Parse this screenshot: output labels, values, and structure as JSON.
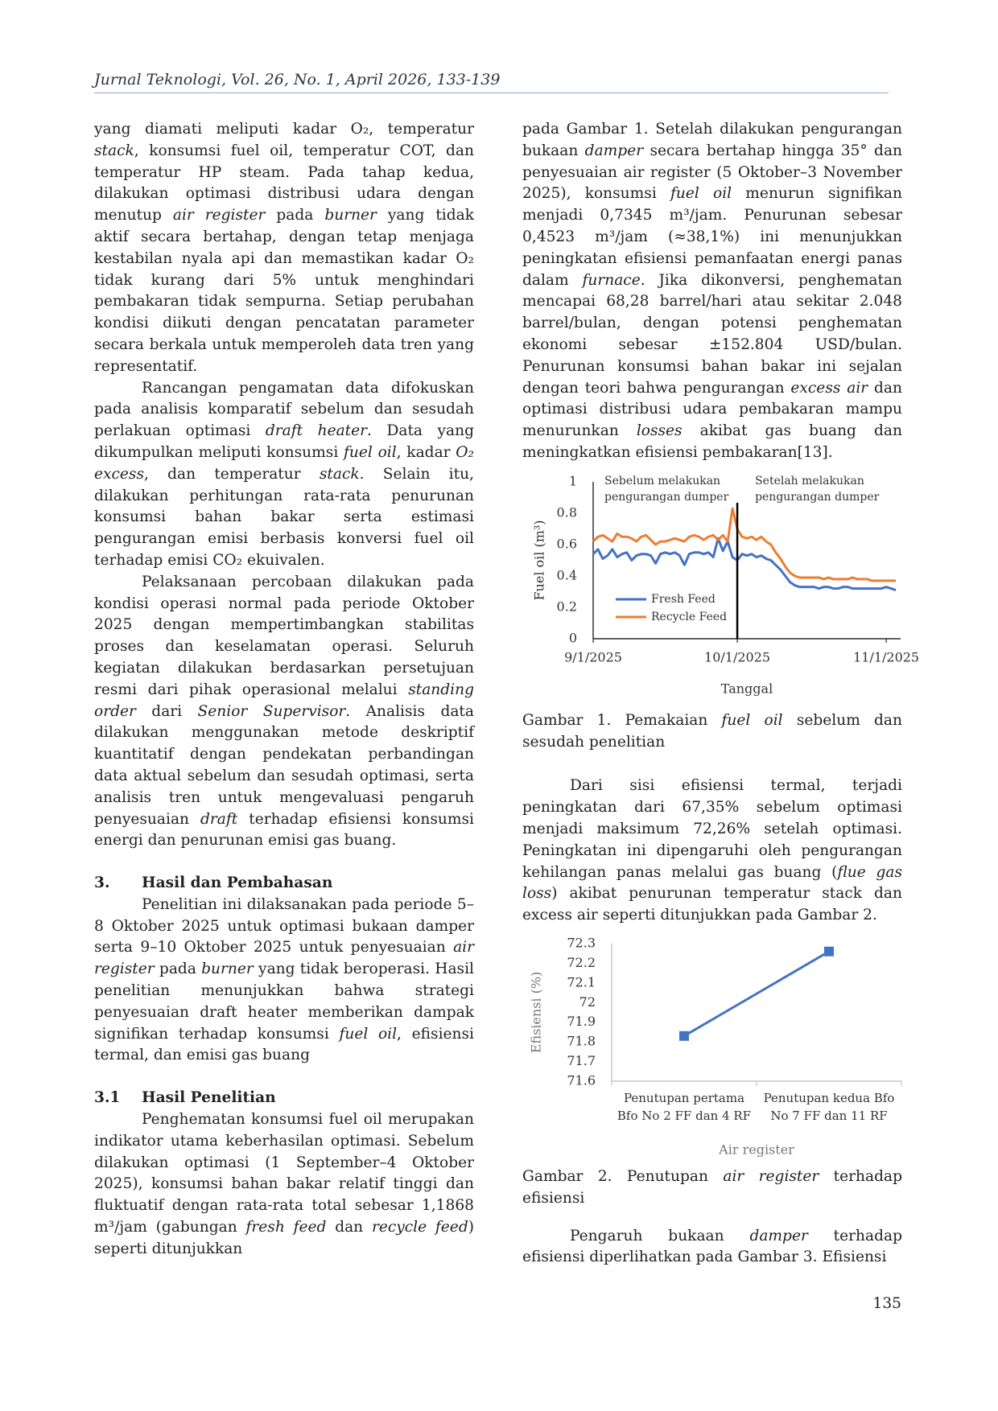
{
  "header": "Jurnal Teknologi, Vol. 26, No. 1, April 2026, 133-139",
  "page_number": "135",
  "left_column": [
    {
      "runs": [
        "yang diamati meliputi kadar O₂, temperatur ",
        "stack",
        ", konsumsi fuel oil, temperatur COT, dan temperatur HP steam. Pada tahap kedua, dilakukan optimasi distribusi udara dengan menutup ",
        "air register",
        " pada ",
        "burner",
        " yang tidak aktif secara bertahap, dengan tetap menjaga kestabilan nyala api dan memastikan kadar O₂ tidak kurang dari 5% untuk menghindari pembakaran tidak sempurna. Setiap perubahan kondisi diikuti dengan pencatatan parameter secara berkala untuk memperoleh data tren yang representatif."
      ]
    },
    {
      "runs": [
        "Rancangan pengamatan data difokuskan pada analisis komparatif sebelum dan sesudah perlakuan optimasi ",
        "draft heater",
        ". Data yang dikumpulkan meliputi konsumsi ",
        "fuel oil",
        ", kadar ",
        "O₂ excess",
        ", dan temperatur ",
        "stack",
        ". Selain itu, dilakukan perhitungan rata-rata penurunan konsumsi bahan bakar serta estimasi pengurangan emisi berbasis konversi fuel oil terhadap emisi CO₂ ekuivalen."
      ]
    },
    {
      "runs": [
        "Pelaksanaan percobaan dilakukan pada kondisi operasi normal pada periode Oktober 2025 dengan mempertimbangkan stabilitas proses dan keselamatan operasi. Seluruh kegiatan dilakukan berdasarkan persetujuan resmi dari pihak operasional melalui ",
        "standing order",
        " dari ",
        "Senior Supervisor",
        ". Analisis data dilakukan menggunakan metode deskriptif kuantitatif dengan pendekatan perbandingan data aktual sebelum dan sesudah optimasi, serta analisis tren untuk mengevaluasi pengaruh penyesuaian ",
        "draft",
        " terhadap efisiensi konsumsi energi dan penurunan emisi gas buang."
      ]
    },
    {
      "number": "3.",
      "heading": "Hasil dan Pembahasan"
    },
    {
      "runs": [
        "Penelitian ini dilaksanakan pada periode 5–8 Oktober 2025 untuk optimasi bukaan damper serta 9–10 Oktober 2025 untuk penyesuaian ",
        "air register",
        " pada ",
        "burner",
        " yang tidak beroperasi. Hasil penelitian menunjukkan bahwa strategi penyesuaian draft heater memberikan dampak signifikan terhadap konsumsi ",
        "fuel oil",
        ", efisiensi termal, dan emisi gas buang"
      ]
    },
    {
      "number": "3.1",
      "heading": "Hasil Penelitian"
    },
    {
      "runs": [
        "Penghematan konsumsi fuel oil merupakan indikator utama keberhasilan optimasi. Sebelum dilakukan optimasi (1 September–4 Oktober 2025), konsumsi bahan bakar relatif tinggi dan fluktuatif dengan rata-rata total sebesar 1,1868 m³/jam (gabungan ",
        "fresh feed",
        " dan ",
        "recycle feed",
        ") seperti ditunjukkan"
      ]
    }
  ],
  "right_column": {
    "paragraphs": [
      [
        "pada Gambar 1. Setelah dilakukan pengurangan bukaan ",
        "damper",
        " secara bertahap hingga 35° dan penyesuaian air register (5 Oktober–3 November 2025), konsumsi ",
        "fuel oil",
        " menurun signifikan menjadi 0,7345 m³/jam. Penurunan sebesar 0,4523 m³/jam (≈38,1%) ini menunjukkan peningkatan efisiensi pemanfaatan energi panas dalam ",
        "furnace",
        ". Jika dikonversi, penghematan mencapai 68,28 barrel/hari atau sekitar 2.048 barrel/bulan, dengan potensi penghematan ekonomi sebesar ±152.804 USD/bulan. Penurunan konsumsi bahan bakar ini sejalan dengan teori bahwa pengurangan ",
        "excess air",
        " dan optimasi distribusi udara pembakaran mampu menurunkan ",
        "losses",
        " akibat gas buang dan meningkatkan efisiensi pembakaran[13]."
      ],
      [
        "Dari sisi efisiensi termal, terjadi peningkatan dari 67,35% sebelum optimasi menjadi maksimum 72,26% setelah optimasi. Peningkatan ini dipengaruhi oleh pengurangan kehilangan panas melalui gas buang (",
        "flue gas loss",
        ") akibat penurunan temperatur stack dan excess air seperti ditunjukkan pada Gambar 2."
      ],
      [
        "Pengaruh bukaan ",
        "damper",
        " terhadap efisiensi diperlihatkan pada Gambar 3. Efisiensi"
      ]
    ],
    "captions": [
      [
        "Gambar 1. Pemakaian ",
        "fuel oil",
        " sebelum dan sesudah penelitian"
      ],
      [
        "Gambar 2. Penutupan ",
        "air register",
        " terhadap efisiensi"
      ]
    ]
  },
  "chart_data": [
    {
      "type": "line",
      "x_label": "Tanggal",
      "y_label": "Fuel oil (m³)",
      "x": [
        "9/1/2025",
        "9/2/2025",
        "9/3/2025",
        "9/4/2025",
        "9/5/2025",
        "9/6/2025",
        "9/7/2025",
        "9/8/2025",
        "9/9/2025",
        "9/10/2025",
        "9/11/2025",
        "9/12/2025",
        "9/13/2025",
        "9/14/2025",
        "9/15/2025",
        "9/16/2025",
        "9/17/2025",
        "9/18/2025",
        "9/19/2025",
        "9/20/2025",
        "9/21/2025",
        "9/22/2025",
        "9/23/2025",
        "9/24/2025",
        "9/25/2025",
        "9/26/2025",
        "9/27/2025",
        "9/28/2025",
        "9/29/2025",
        "9/30/2025",
        "10/1/2025",
        "10/2/2025",
        "10/3/2025",
        "10/4/2025",
        "10/5/2025",
        "10/6/2025",
        "10/7/2025",
        "10/8/2025",
        "10/9/2025",
        "10/10/2025",
        "10/11/2025",
        "10/12/2025",
        "10/13/2025",
        "10/14/2025",
        "10/15/2025",
        "10/16/2025",
        "10/17/2025",
        "10/18/2025",
        "10/19/2025",
        "10/20/2025",
        "10/21/2025",
        "10/22/2025",
        "10/23/2025",
        "10/24/2025",
        "10/25/2025",
        "10/26/2025",
        "10/27/2025",
        "10/28/2025",
        "10/29/2025",
        "10/30/2025",
        "10/31/2025",
        "11/1/2025",
        "11/2/2025",
        "11/3/2025"
      ],
      "series": [
        {
          "name": "Fresh Feed",
          "color": "#4472c4",
          "values": [
            0.54,
            0.57,
            0.51,
            0.53,
            0.57,
            0.52,
            0.54,
            0.55,
            0.5,
            0.53,
            0.54,
            0.54,
            0.53,
            0.48,
            0.54,
            0.55,
            0.54,
            0.55,
            0.53,
            0.47,
            0.54,
            0.55,
            0.55,
            0.54,
            0.55,
            0.52,
            0.64,
            0.56,
            0.62,
            0.52,
            0.5,
            0.54,
            0.53,
            0.54,
            0.52,
            0.53,
            0.51,
            0.5,
            0.47,
            0.44,
            0.4,
            0.36,
            0.34,
            0.33,
            0.33,
            0.33,
            0.33,
            0.32,
            0.33,
            0.33,
            0.32,
            0.32,
            0.33,
            0.33,
            0.32,
            0.32,
            0.32,
            0.32,
            0.32,
            0.32,
            0.32,
            0.33,
            0.32,
            0.31
          ]
        },
        {
          "name": "Recycle Feed",
          "color": "#ed7d31",
          "values": [
            0.62,
            0.65,
            0.66,
            0.64,
            0.62,
            0.67,
            0.65,
            0.65,
            0.64,
            0.62,
            0.65,
            0.66,
            0.63,
            0.6,
            0.62,
            0.62,
            0.63,
            0.64,
            0.63,
            0.62,
            0.65,
            0.66,
            0.65,
            0.63,
            0.65,
            0.66,
            0.63,
            0.66,
            0.62,
            0.83,
            0.7,
            0.65,
            0.64,
            0.65,
            0.63,
            0.65,
            0.62,
            0.6,
            0.55,
            0.51,
            0.46,
            0.42,
            0.4,
            0.39,
            0.39,
            0.39,
            0.39,
            0.39,
            0.38,
            0.39,
            0.38,
            0.38,
            0.38,
            0.38,
            0.39,
            0.38,
            0.38,
            0.38,
            0.37,
            0.37,
            0.37,
            0.37,
            0.37,
            0.37
          ]
        }
      ],
      "xlim": [
        "9/1/2025",
        "11/4/2025"
      ],
      "xticks": [
        "9/1/2025",
        "10/1/2025",
        "11/1/2025"
      ],
      "ylim": [
        0,
        1
      ],
      "yticks": [
        0,
        0.2,
        0.4,
        0.6,
        0.8,
        1
      ],
      "marker_line_x": "10/1/2025",
      "annotations": [
        [
          "Sebelum melakukan",
          "pengurangan dumper"
        ],
        [
          "Setelah melakukan",
          "pengurangan dumper"
        ]
      ],
      "legend": "lower left",
      "grid": false
    },
    {
      "type": "line",
      "x_label": "Air register",
      "y_label": "Efisiensi (%)",
      "categories": [
        [
          "Penutupan pertama",
          "Bfo No 2 FF dan 4 RF"
        ],
        [
          "Penutupan kedua Bfo",
          "No 7 FF dan 11 RF"
        ]
      ],
      "values": [
        71.83,
        72.26
      ],
      "color": "#4472c4",
      "markers": true,
      "ylim": [
        71.6,
        72.3
      ],
      "yticks": [
        71.6,
        71.7,
        71.8,
        71.9,
        72,
        72.1,
        72.2,
        72.3
      ],
      "grid": false
    }
  ]
}
